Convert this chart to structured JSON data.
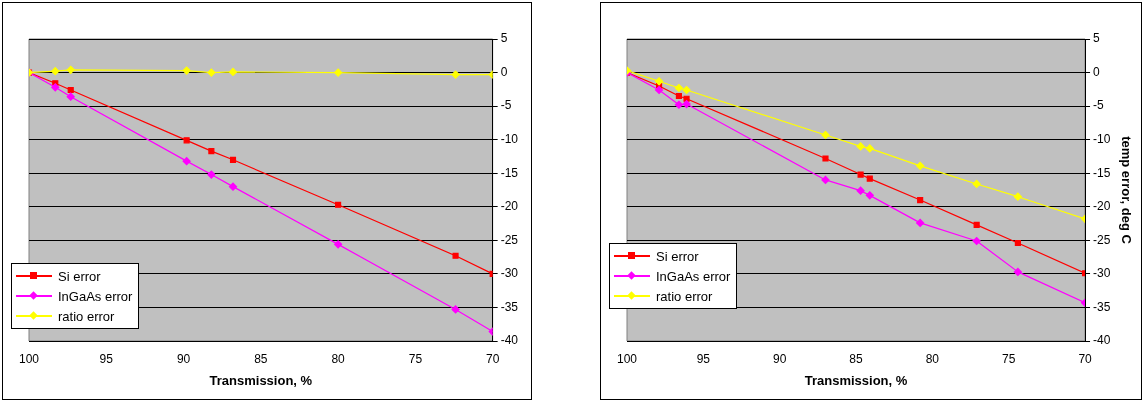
{
  "chart_data": [
    {
      "type": "line",
      "xlabel": "Transmission, %",
      "xlim": [
        100,
        70
      ],
      "xticks": [
        100,
        95,
        90,
        85,
        80,
        75,
        70
      ],
      "ylim": [
        -40,
        5
      ],
      "yticks": [
        -40,
        -35,
        -30,
        -25,
        -20,
        -15,
        -10,
        -5,
        0,
        5
      ],
      "grid": "y",
      "legend": "bottom left",
      "x": [
        100,
        98.3,
        97.3,
        89.8,
        88.2,
        86.8,
        80,
        72.4,
        70
      ],
      "series": [
        {
          "name": "Si error",
          "color": "#ff0000",
          "marker": "square",
          "values": [
            0,
            -1.6,
            -2.6,
            -10.1,
            -11.7,
            -13.0,
            -19.7,
            -27.3,
            -30.0
          ]
        },
        {
          "name": "InGaAs error",
          "color": "#ff00ff",
          "marker": "diamond",
          "values": [
            0,
            -2.2,
            -3.6,
            -13.2,
            -15.2,
            -17.0,
            -25.6,
            -35.3,
            -38.6
          ]
        },
        {
          "name": "ratio error",
          "color": "#ffff00",
          "marker": "diamond",
          "values": [
            0,
            0.2,
            0.4,
            0.3,
            0,
            0.1,
            0,
            -0.3,
            -0.3
          ]
        }
      ]
    },
    {
      "type": "line",
      "xlabel": "Transmission, %",
      "ylabel": "temp error, deg C",
      "xlim": [
        100,
        70
      ],
      "xticks": [
        100,
        95,
        90,
        85,
        80,
        75,
        70
      ],
      "ylim": [
        -40,
        5
      ],
      "yticks": [
        -40,
        -35,
        -30,
        -25,
        -20,
        -15,
        -10,
        -5,
        0,
        5
      ],
      "grid": "y",
      "legend": "bottom left",
      "x": [
        100,
        97.9,
        96.6,
        96.1,
        87.0,
        84.7,
        84.1,
        80.8,
        77.1,
        74.4,
        70
      ],
      "series": [
        {
          "name": "Si error",
          "color": "#ff0000",
          "marker": "square",
          "values": [
            0,
            -2.0,
            -3.5,
            -3.9,
            -12.8,
            -15.2,
            -15.8,
            -19.0,
            -22.7,
            -25.4,
            -29.9
          ]
        },
        {
          "name": "InGaAs error",
          "color": "#ff00ff",
          "marker": "diamond",
          "values": [
            0,
            -2.6,
            -4.8,
            -4.7,
            -16.0,
            -17.6,
            -18.3,
            -22.4,
            -25.1,
            -29.7,
            -34.3
          ]
        },
        {
          "name": "ratio error",
          "color": "#ffff00",
          "marker": "diamond",
          "values": [
            0.3,
            -1.3,
            -2.3,
            -2.6,
            -9.3,
            -11.0,
            -11.3,
            -13.9,
            -16.6,
            -18.5,
            -21.8
          ]
        }
      ]
    }
  ]
}
